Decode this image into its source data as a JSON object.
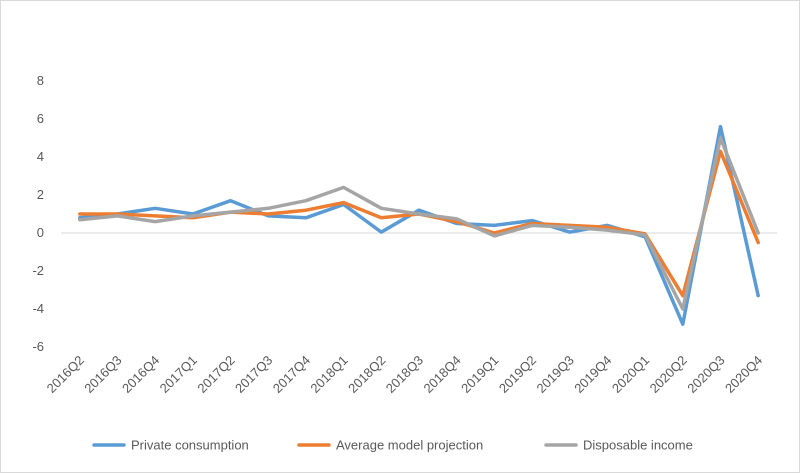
{
  "chart_data": {
    "type": "line",
    "title": "",
    "xlabel": "",
    "ylabel": "",
    "categories": [
      "2016Q2",
      "2016Q3",
      "2016Q4",
      "2017Q1",
      "2017Q2",
      "2017Q3",
      "2017Q4",
      "2018Q1",
      "2018Q2",
      "2018Q3",
      "2018Q4",
      "2019Q1",
      "2019Q2",
      "2019Q3",
      "2019Q4",
      "2020Q1",
      "2020Q2",
      "2020Q3",
      "2020Q4"
    ],
    "y_ticks": [
      "-6",
      "-4",
      "-2",
      "0",
      "2",
      "4",
      "6",
      "8"
    ],
    "ylim": [
      -6,
      8
    ],
    "grid": false,
    "legend_position": "bottom",
    "series": [
      {
        "name": "Private consumption",
        "color": "#5b9bd5",
        "values": [
          0.8,
          1.0,
          1.3,
          1.0,
          1.7,
          0.9,
          0.8,
          1.5,
          0.05,
          1.2,
          0.5,
          0.4,
          0.65,
          0.05,
          0.4,
          -0.2,
          -4.8,
          5.6,
          -3.3
        ]
      },
      {
        "name": "Average model projection",
        "color": "#ed7d31",
        "values": [
          1.0,
          1.0,
          0.9,
          0.8,
          1.1,
          1.0,
          1.2,
          1.6,
          0.8,
          1.0,
          0.6,
          0.0,
          0.5,
          0.4,
          0.3,
          -0.05,
          -3.3,
          4.3,
          -0.5
        ]
      },
      {
        "name": "Disposable income",
        "color": "#a5a5a5",
        "values": [
          0.7,
          0.9,
          0.6,
          0.9,
          1.1,
          1.3,
          1.7,
          2.4,
          1.3,
          1.0,
          0.75,
          -0.15,
          0.4,
          0.3,
          0.15,
          -0.1,
          -4.0,
          5.0,
          0.0
        ]
      }
    ]
  }
}
